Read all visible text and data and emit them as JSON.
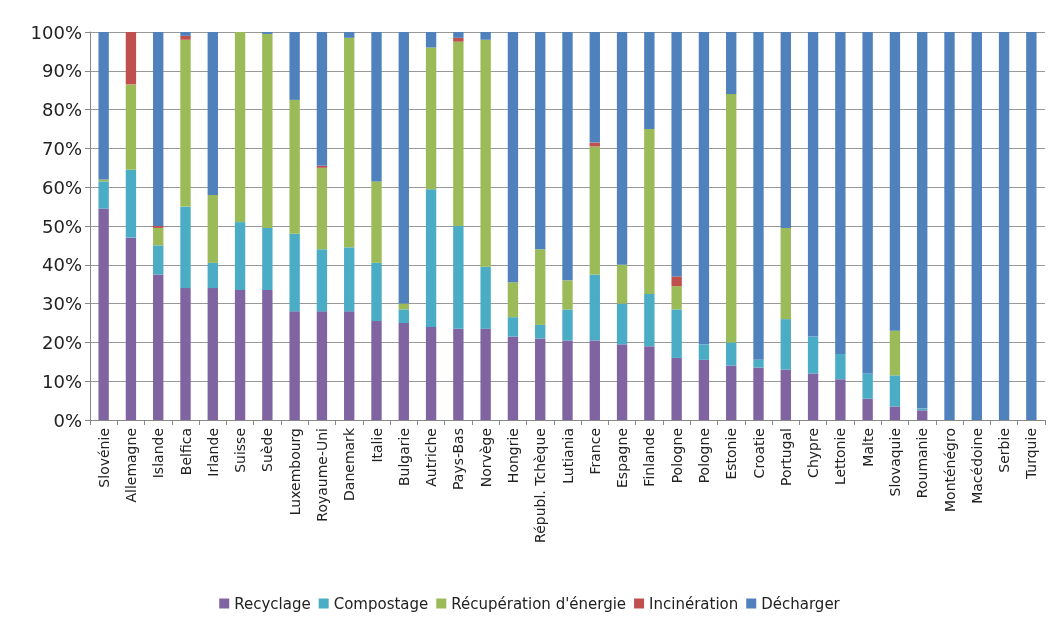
{
  "chart_data": {
    "type": "bar",
    "stacked": true,
    "categories": [
      "Slovénie",
      "Allemagne",
      "Islande",
      "Belfica",
      "Irlande",
      "Suisse",
      "Suède",
      "Luxembourg",
      "Royaume-Uni",
      "Danemark",
      "Italie",
      "Bulgarie",
      "Autriche",
      "Pays-Bas",
      "Norvège",
      "Hongrie",
      "Républ. Tchèque",
      "Lutiania",
      "France",
      "Espagne",
      "Finlande",
      "Pologne",
      "Pologne",
      "Estonie",
      "Croatie",
      "Portugal",
      "Chypre",
      "Lettonie",
      "Malte",
      "Slovaquie",
      "Roumanie",
      "Monténégro",
      "Macédoine",
      "Serbie",
      "Turquie"
    ],
    "series": [
      {
        "name": "Recyclage",
        "color": "#8064a2",
        "values": [
          54.5,
          47,
          37.5,
          34,
          34,
          33.5,
          33.5,
          28,
          28,
          28,
          25.5,
          25,
          24,
          23.5,
          23.5,
          21.5,
          21,
          20.5,
          20.5,
          19.5,
          19,
          16,
          15.5,
          14,
          13.5,
          13,
          12,
          10.5,
          5.5,
          3.5,
          2.5,
          0,
          0,
          0,
          0
        ]
      },
      {
        "name": "Compostage",
        "color": "#4bacc6",
        "values": [
          7,
          17.5,
          7.5,
          21,
          6.5,
          17.5,
          16,
          20,
          16,
          16.5,
          15,
          3.5,
          35.5,
          26.5,
          16,
          5,
          3.5,
          8,
          17,
          10.5,
          13.5,
          12.5,
          4,
          6,
          2,
          13,
          9.5,
          6.5,
          6.5,
          8,
          0.5,
          0,
          0,
          0,
          0
        ]
      },
      {
        "name": "Récupération d'énergie",
        "color": "#9bbb59",
        "values": [
          0.5,
          22,
          4.5,
          43,
          17.5,
          49,
          50,
          34.5,
          21,
          54,
          21,
          1.5,
          36.5,
          47.5,
          58.5,
          9,
          19.5,
          7.5,
          33,
          10,
          42.5,
          6,
          0,
          64,
          0,
          23.5,
          0,
          0,
          0,
          11.5,
          0,
          0,
          0,
          0,
          0
        ]
      },
      {
        "name": "Incinération",
        "color": "#c0504d",
        "values": [
          0,
          13.5,
          0.5,
          1,
          0,
          0,
          0,
          0,
          0.5,
          0,
          0,
          0,
          0,
          1,
          0,
          0,
          0,
          0,
          1,
          0,
          0,
          2.5,
          0,
          0,
          0,
          0,
          0,
          0,
          0,
          0,
          0,
          0,
          0,
          0,
          0
        ]
      },
      {
        "name": "Décharger",
        "color": "#4f81bd",
        "values": [
          38,
          0,
          50,
          1,
          42,
          0,
          0.5,
          17.5,
          34.5,
          1.5,
          38.5,
          70,
          4,
          1.5,
          2,
          64.5,
          56,
          64,
          28.5,
          60,
          25,
          63,
          80.5,
          16,
          84.5,
          50.5,
          78.5,
          83,
          88,
          77,
          97,
          100,
          100,
          100,
          100
        ]
      }
    ],
    "ylim": [
      0,
      100
    ],
    "yticks": [
      {
        "value": 0,
        "label": "0%"
      },
      {
        "value": 10,
        "label": "10%"
      },
      {
        "value": 20,
        "label": "20%"
      },
      {
        "value": 30,
        "label": "30%"
      },
      {
        "value": 40,
        "label": "40%"
      },
      {
        "value": 50,
        "label": "50%"
      },
      {
        "value": 60,
        "label": "60%"
      },
      {
        "value": 70,
        "label": "70%"
      },
      {
        "value": 80,
        "label": "80%"
      },
      {
        "value": 90,
        "label": "90%"
      },
      {
        "value": 100,
        "label": "100%"
      }
    ],
    "grid": "y",
    "legend": "bottom"
  }
}
